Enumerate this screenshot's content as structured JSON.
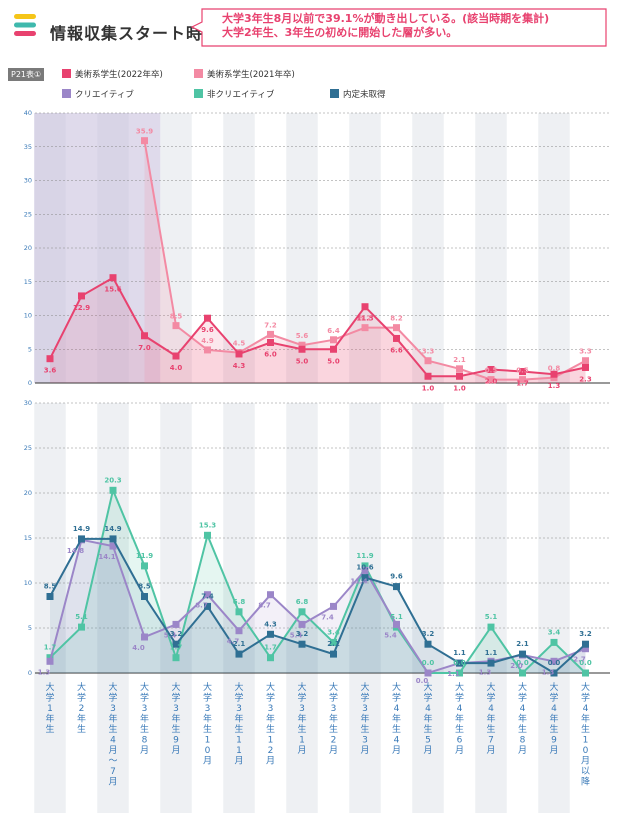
{
  "page": {
    "title": "情報収集スタート時期",
    "callout_line1": "大学3年生8月以前で39.1%が動き出している。(該当時期を集計)",
    "callout_line2": "大学2年生、3年生の初めに開始した層が多い。",
    "table_tag": "P21表①"
  },
  "colors": {
    "logo": [
      "#f5c518",
      "#3fb9ad",
      "#e8426f"
    ],
    "callout_border": "#e8426f",
    "callout_text": "#e8426f",
    "band": "#eef0f3",
    "highlight": "#c9c2dd"
  },
  "legend": [
    {
      "label": "美術系学生(2022年卒)",
      "color": "#e8426f"
    },
    {
      "label": "美術系学生(2021年卒)",
      "color": "#f38aa3"
    },
    {
      "label": "クリエイティブ",
      "color": "#9b86c8"
    },
    {
      "label": "非クリエイティブ",
      "color": "#4fc4a4"
    },
    {
      "label": "内定未取得",
      "color": "#2f6f93"
    }
  ],
  "chart_data": [
    {
      "type": "line",
      "categories": [
        "大学1年生",
        "大学2年生",
        "大学3年生4月〜7月",
        "大学3年生8月",
        "大学3年生9月",
        "大学3年生10月",
        "大学3年生11月",
        "大学3年生12月",
        "大学3年生1月",
        "大学3年生2月",
        "大学3年生3月",
        "大学4年生4月",
        "大学4年生5月",
        "大学4年生6月",
        "大学4年生7月",
        "大学4年生8月",
        "大学4年生9月",
        "大学4年生10月以降"
      ],
      "ylim": [
        0,
        40
      ],
      "yticks": [
        "0",
        "5",
        "10",
        "15",
        "20",
        "25",
        "30",
        "35",
        "40"
      ],
      "grid": true,
      "series": [
        {
          "name": "美術系学生(2021年卒)",
          "color": "#f38aa3",
          "values": [
            null,
            null,
            null,
            35.9,
            8.5,
            4.9,
            4.5,
            7.2,
            5.6,
            6.4,
            8.2,
            8.2,
            3.3,
            2.1,
            0.5,
            0.5,
            0.8,
            3.3
          ],
          "labels": [
            "",
            "",
            "",
            "35.9",
            "8.5",
            "4.9",
            "4.5",
            "7.2",
            "5.6",
            "6.4",
            "8.2",
            "8.2",
            "3.3",
            "2.1",
            "0.5",
            "0.5",
            "0.8",
            "3.3"
          ]
        },
        {
          "name": "美術系学生(2022年卒)",
          "color": "#e8426f",
          "values": [
            3.6,
            12.9,
            15.6,
            7.0,
            4.0,
            9.6,
            4.3,
            6.0,
            5.0,
            5.0,
            11.3,
            6.6,
            1.0,
            1.0,
            2.0,
            1.7,
            1.3,
            2.3
          ],
          "labels": [
            "3.6",
            "12.9",
            "15.6",
            "7.0",
            "4.0",
            "9.6",
            "4.3",
            "6.0",
            "5.0",
            "5.0",
            "11.3",
            "6.6",
            "1.0",
            "1.0",
            "2.0",
            "1.7",
            "1.3",
            "2.3"
          ]
        }
      ]
    },
    {
      "type": "line",
      "categories": [
        "大学1年生",
        "大学2年生",
        "大学3年生4月〜7月",
        "大学3年生8月",
        "大学3年生9月",
        "大学3年生10月",
        "大学3年生11月",
        "大学3年生12月",
        "大学3年生1月",
        "大学3年生2月",
        "大学3年生3月",
        "大学4年生4月",
        "大学4年生5月",
        "大学4年生6月",
        "大学4年生7月",
        "大学4年生8月",
        "大学4年生9月",
        "大学4年生10月以降"
      ],
      "ylim": [
        0,
        30
      ],
      "yticks": [
        "0",
        "5",
        "10",
        "15",
        "20",
        "25",
        "30"
      ],
      "grid": true,
      "series": [
        {
          "name": "非クリエイティブ",
          "color": "#4fc4a4",
          "values": [
            1.7,
            5.1,
            20.3,
            11.9,
            1.7,
            15.3,
            6.8,
            1.7,
            6.8,
            3.4,
            11.9,
            5.1,
            0.0,
            0.0,
            5.1,
            0.0,
            3.4,
            0.0
          ],
          "labels": [
            "1.7",
            "5.1",
            "20.3",
            "11.9",
            "1.7",
            "15.3",
            "6.8",
            "1.7",
            "6.8",
            "3.4",
            "11.9",
            "5.1",
            "0.0",
            "0.0",
            "5.1",
            "0.0",
            "3.4",
            "0.0"
          ]
        },
        {
          "name": "クリエイティブ",
          "color": "#9b86c8",
          "values": [
            1.3,
            14.8,
            14.1,
            4.0,
            5.4,
            8.7,
            4.7,
            8.7,
            5.4,
            7.4,
            11.4,
            5.4,
            0.0,
            1.1,
            1.3,
            2.0,
            1.3,
            2.7
          ],
          "labels": [
            "1.3",
            "14.8",
            "14.1",
            "4.0",
            "5.4",
            "8.7",
            "4.7",
            "8.7",
            "5.4",
            "7.4",
            "11.4",
            "5.4",
            "0.0",
            "1.1",
            "1.3",
            "2.0",
            "1.3",
            "2.7"
          ]
        },
        {
          "name": "内定未取得",
          "color": "#2f6f93",
          "values": [
            8.5,
            14.9,
            14.9,
            8.5,
            3.2,
            7.4,
            2.1,
            4.3,
            3.2,
            2.1,
            10.6,
            9.6,
            3.2,
            1.1,
            1.1,
            2.1,
            0.0,
            3.2
          ],
          "labels": [
            "8.5",
            "14.9",
            "14.9",
            "8.5",
            "3.2",
            "7.4",
            "2.1",
            "4.3",
            "3.2",
            "2.1",
            "10.6",
            "9.6",
            "3.2",
            "1.1",
            "1.1",
            "2.1",
            "0.0",
            "3.2"
          ]
        }
      ]
    }
  ],
  "x_axis_labels": [
    "大学1年生",
    "大学2年生",
    "大学3年生 4月〜7月",
    "大学3年生 8月",
    "大学3年生 9月",
    "大学3年生 10月",
    "大学3年生 11月",
    "大学3年生 12月",
    "大学3年生 1月",
    "大学3年生 2月",
    "大学3年生 3月",
    "大学4年生 4月",
    "大学4年生 5月",
    "大学4年生 6月",
    "大学4年生 7月",
    "大学4年生 8月",
    "大学4年生 9月",
    "大学4年生 10月以降"
  ]
}
